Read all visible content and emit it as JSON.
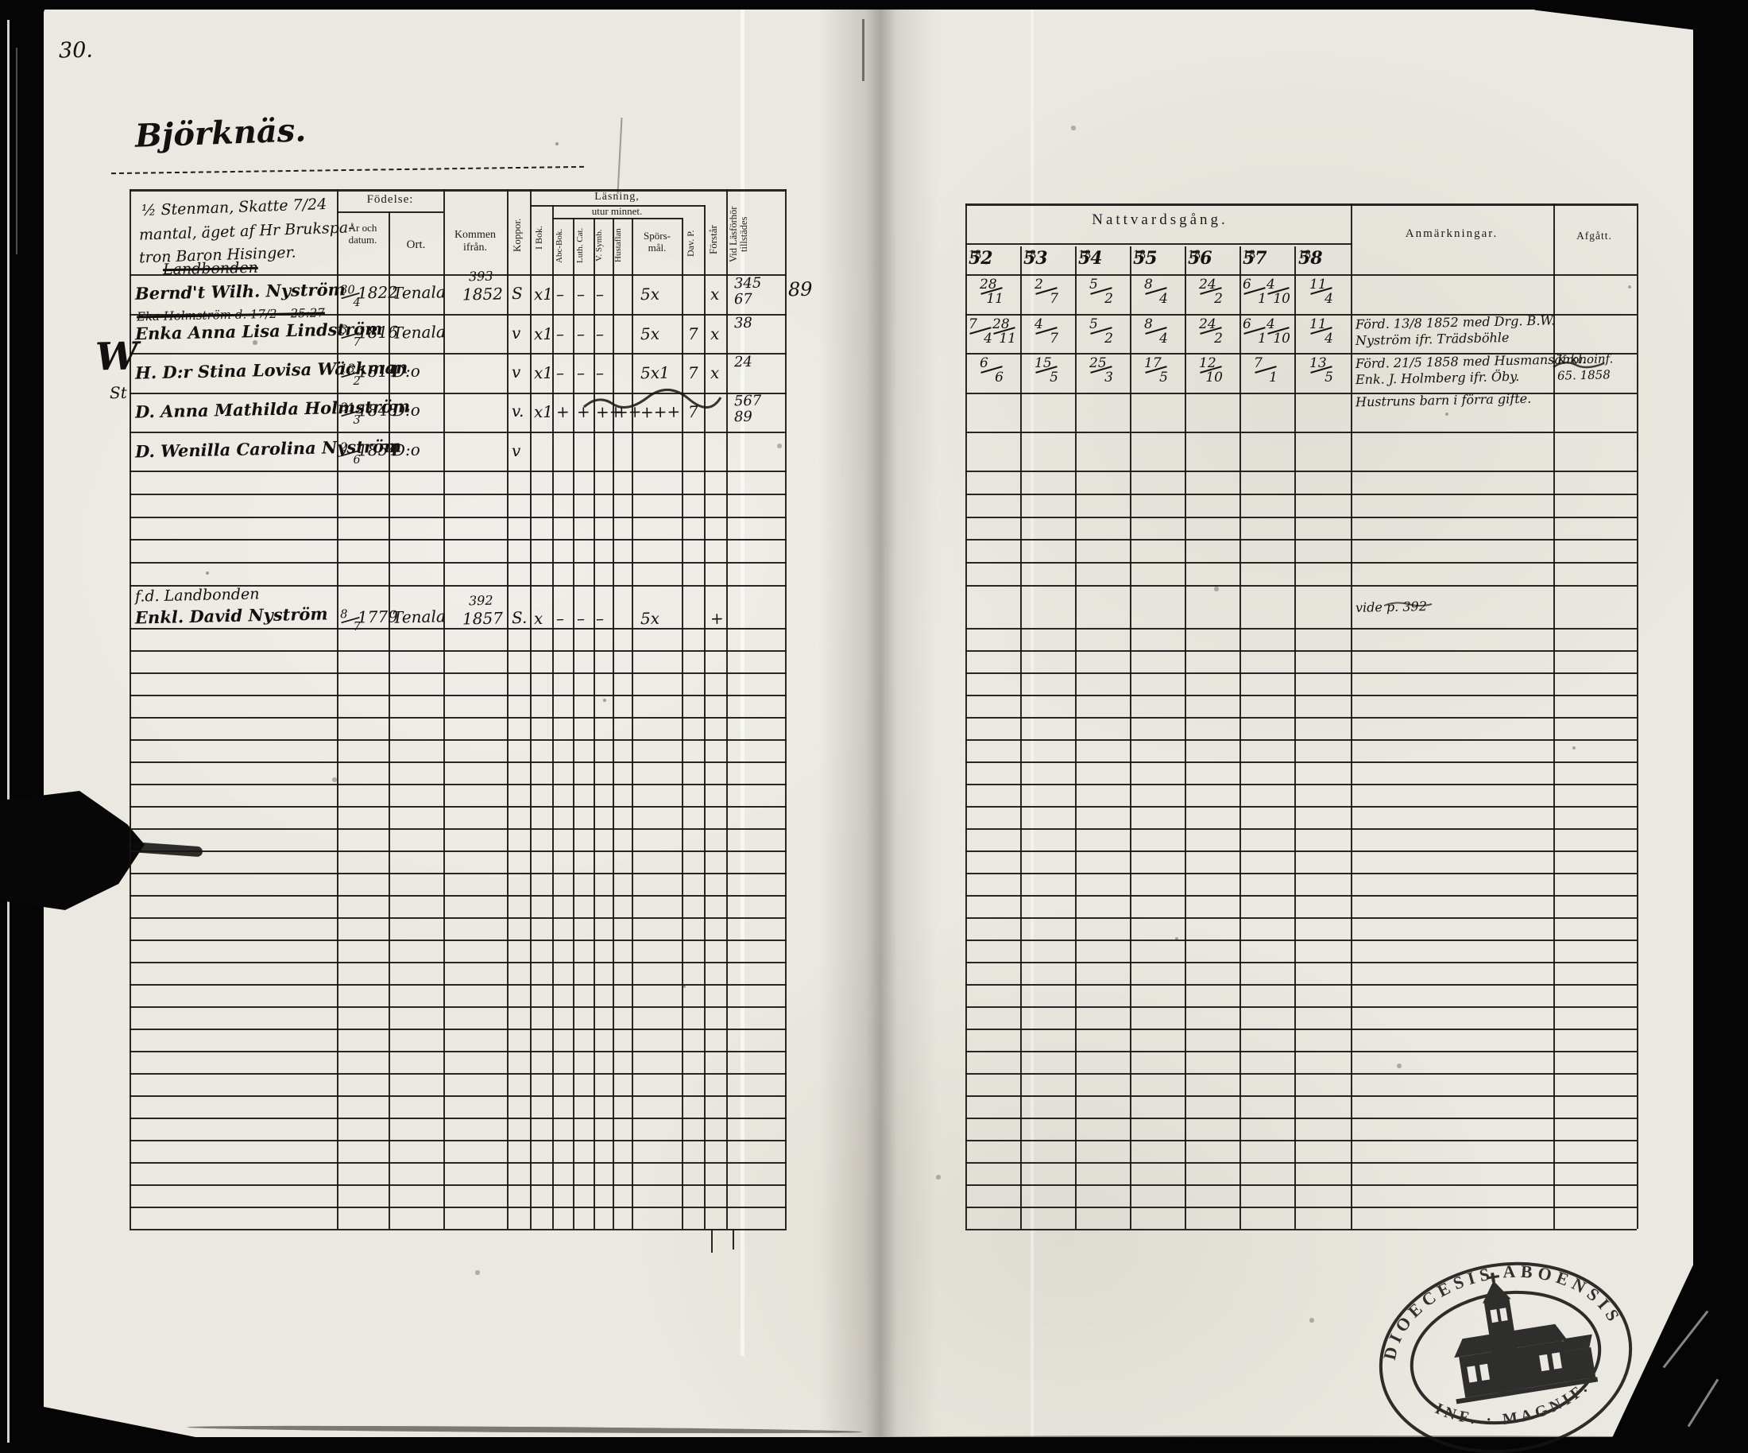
{
  "page": {
    "number": "30.",
    "title": "Björknäs.",
    "household_note_lines": [
      "½ Stenman, Skatte 7/24",
      "mantal, äget af Hr Brukspa-",
      "tron Baron Hisinger."
    ]
  },
  "left_table": {
    "header": {
      "fodelse": "Födelse:",
      "ar_och_datum": "År och datum.",
      "ort": "Ort.",
      "kommen_ifran": "Kommen ifrån.",
      "koppor": "Koppor.",
      "lasning": "Läsning,",
      "utur_minnet": "utur minnet.",
      "i_bok": "I Bok.",
      "abc_bok": "Abc-Bok.",
      "luth_cat": "Luth. Cat.",
      "v_symb": "V. Symb.",
      "hustaflan": "Hustaflan",
      "sporsmal_1": "Spörs-",
      "sporsmal_2": "mål.",
      "dav_p": "Dav. P.",
      "forstar": "Förstår",
      "vid_lasforhor": "Vid Läsförhör tillstädes"
    },
    "rows": [
      {
        "heading": "Landbonden",
        "heading_struck": true,
        "crossed_above": "",
        "margin": "",
        "name": "Bernd't Wilh. Nyström",
        "birth_frac": "30/4",
        "birth_year": "1822",
        "ort": "Tenala",
        "kommen_lines": [
          "393",
          "1852"
        ],
        "koppor": "S",
        "marks": {
          "i_bok": "x1",
          "abc_bok": "–",
          "luth_cat": "–",
          "v_symb": "–",
          "hustaflan": "",
          "sporsmal": "5x",
          "dav_p": "",
          "forstar": "x"
        },
        "vid_lines": [
          "345",
          "67"
        ],
        "vid_extra": "89"
      },
      {
        "heading": "",
        "heading_struck": false,
        "crossed_above": "Eka Holmström d. 17/2 – 25:27",
        "margin": "",
        "name": "Enka Anna Lisa Lindström",
        "birth_frac": "3/7",
        "birth_year": "1816",
        "ort": "Tenala",
        "kommen_lines": [],
        "koppor": "v",
        "marks": {
          "i_bok": "x1",
          "abc_bok": "–",
          "luth_cat": "–",
          "v_symb": "–",
          "hustaflan": "",
          "sporsmal": "5x",
          "dav_p": "7",
          "forstar": "x"
        },
        "vid_lines": [
          "38"
        ],
        "vid_extra": ""
      },
      {
        "heading": "",
        "heading_struck": false,
        "crossed_above": "",
        "margin": "W",
        "name": "H. D:r Stina Lovisa Wäckman",
        "birth_frac": "13/2",
        "birth_year": "1814",
        "ort": "D:o",
        "kommen_lines": [],
        "koppor": "v",
        "marks": {
          "i_bok": "x1",
          "abc_bok": "–",
          "luth_cat": "–",
          "v_symb": "–",
          "hustaflan": "",
          "sporsmal": "5x1",
          "dav_p": "7",
          "forstar": "x"
        },
        "vid_lines": [
          "24"
        ],
        "vid_extra": ""
      },
      {
        "heading": "",
        "heading_struck": false,
        "crossed_above": "",
        "margin": "St",
        "name": "D. Anna Mathilda Holmström",
        "birth_frac": "31/3",
        "birth_year": "1848",
        "ort": "D:o",
        "kommen_lines": [],
        "koppor": "v.",
        "marks": {
          "i_bok": "x1",
          "abc_bok": "+",
          "luth_cat": "+",
          "v_symb": "++",
          "hustaflan": "++",
          "sporsmal": "+++",
          "dav_p": "7",
          "forstar": ""
        },
        "vid_lines": [
          "567",
          "89"
        ],
        "vid_extra": ""
      },
      {
        "heading": "",
        "heading_struck": false,
        "crossed_above": "",
        "margin": "",
        "name": "D. Wenilla Carolina Nyström",
        "birth_frac": "2/6",
        "birth_year": "1854",
        "ort": "D:o",
        "kommen_lines": [],
        "koppor": "v",
        "marks": {
          "i_bok": "",
          "abc_bok": "",
          "luth_cat": "",
          "v_symb": "",
          "hustaflan": "",
          "sporsmal": "",
          "dav_p": "",
          "forstar": ""
        },
        "vid_lines": [],
        "vid_extra": ""
      },
      {
        "heading": "f.d. Landbonden",
        "heading_struck": false,
        "crossed_above": "",
        "margin": "",
        "name": "Enkl. David Nyström",
        "birth_frac": "8/7",
        "birth_year": "1779",
        "ort": "Tenala",
        "kommen_lines": [
          "392",
          "1857"
        ],
        "koppor": "S.",
        "marks": {
          "i_bok": "x",
          "abc_bok": "–",
          "luth_cat": "–",
          "v_symb": "–",
          "hustaflan": "",
          "sporsmal": "5x",
          "dav_p": "",
          "forstar": "+"
        },
        "vid_lines": [],
        "vid_extra": ""
      }
    ]
  },
  "right_table": {
    "title": "Nattvardsgång.",
    "year_prefix": "18",
    "year_suffixes": [
      "52",
      "53",
      "54",
      "55",
      "56",
      "57",
      "58"
    ],
    "anmarkningar": "Anmärkningar.",
    "afgatt": "Afgått.",
    "rows": [
      {
        "communion": [
          "28/11",
          "2/7",
          "5/2",
          "8/4",
          "24/2",
          "6/1 4/10",
          "11/4"
        ],
        "anm_lines": [],
        "afgatt_lines": []
      },
      {
        "communion": [
          "7/4 28/11",
          "4/7",
          "5/2",
          "8/4",
          "24/2",
          "6/1 4/10",
          "11/4"
        ],
        "anm_lines": [
          "Förd. 13/8 1852 med Drg. B.W.",
          "Nyström ifr. Trädsböhle"
        ],
        "afgatt_lines": []
      },
      {
        "communion": [
          "6/6",
          "15/5",
          "25/3",
          "17/5",
          "12/10",
          "7/1",
          "13/5"
        ],
        "anm_lines": [
          "Förd. 21/5 1858 med Husmansänkl.",
          "Enk. J. Holmberg ifr. Öby."
        ],
        "afgatt_lines": [
          "Kronoinf.",
          "65. 1858"
        ]
      },
      {
        "communion": [],
        "anm_lines": [
          "Hustruns barn i förra gifte."
        ],
        "afgatt_lines": []
      },
      {
        "communion": [],
        "anm_lines": [],
        "afgatt_lines": []
      },
      {
        "communion": [],
        "anm_lines": [
          "vide p. 392"
        ],
        "afgatt_lines": []
      }
    ]
  },
  "stamp": {
    "arc_top": "DIOECESIS ABOENSIS",
    "arc_bottom": "INF. · MAGNIF.",
    "symbol": "church"
  }
}
